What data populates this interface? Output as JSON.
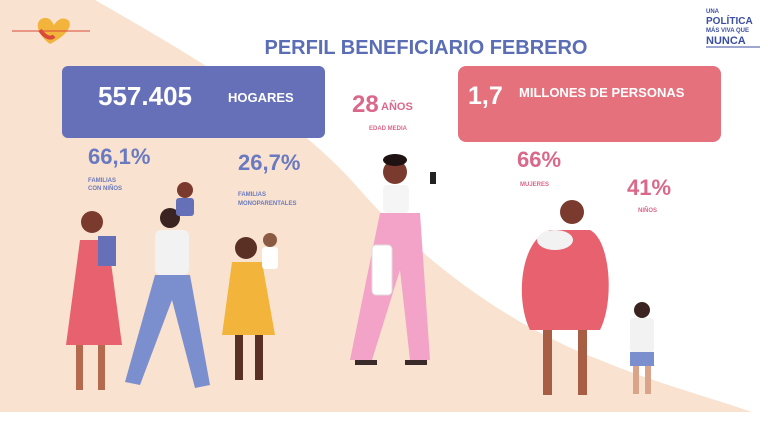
{
  "logo": {
    "lines": [
      "UNA",
      "POLÍTICA",
      "MÁS VIVA QUE",
      "NUNCA"
    ]
  },
  "title": "PERFIL BENEFICIARIO FEBRERO",
  "households": {
    "value": "557.405",
    "label": "HOGARES"
  },
  "age": {
    "value": "28",
    "unit": "AÑOS",
    "label": "EDAD MEDIA"
  },
  "people": {
    "value": "1,7",
    "label": "MILLONES DE PERSONAS"
  },
  "families_children": {
    "value": "66,1%",
    "label": [
      "FAMILIAS",
      "CON NIÑOS"
    ]
  },
  "single_parent": {
    "value": "26,7%",
    "label": [
      "FAMILIAS",
      "MONOPARENTALES"
    ]
  },
  "women": {
    "value": "66%",
    "label": "MUJERES"
  },
  "children": {
    "value": "41%",
    "label": "NIÑOS"
  }
}
